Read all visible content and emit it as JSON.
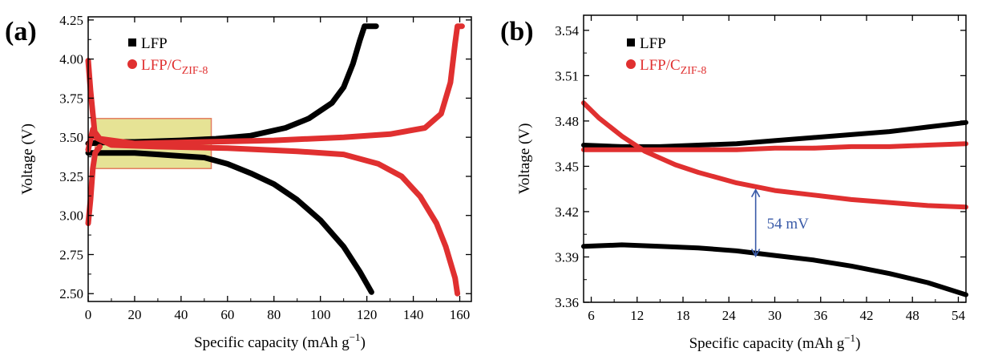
{
  "chart_data": [
    {
      "type": "line",
      "panel_label": "(a)",
      "xlabel": "Specific capacity (mAh g",
      "xlabel_sup": "−1",
      "xlabel_close": ")",
      "ylabel": "Voltage (V)",
      "xlim": [
        0,
        165
      ],
      "ylim": [
        2.45,
        4.27
      ],
      "x_ticks": [
        0,
        20,
        40,
        60,
        80,
        100,
        120,
        140,
        160
      ],
      "y_ticks": [
        "2.50",
        "2.75",
        "3.00",
        "3.25",
        "3.50",
        "3.75",
        "4.00",
        "4.25"
      ],
      "legend": {
        "placement": "top-left",
        "items": [
          {
            "label": "LFP",
            "sub": "",
            "color": "#000000",
            "marker": "square"
          },
          {
            "label": "LFP/C",
            "sub": "ZIF-8",
            "color": "#e03030",
            "marker": "circle"
          }
        ]
      },
      "highlight_box": {
        "x": [
          3,
          53
        ],
        "y": [
          3.3,
          3.62
        ],
        "fill": "#e4e08a",
        "stroke": "#e07050"
      },
      "series": [
        {
          "name": "LFP",
          "color": "#000000",
          "curves": [
            [
              [
                0,
                3.46
              ],
              [
                10,
                3.47
              ],
              [
                20,
                3.47
              ],
              [
                40,
                3.48
              ],
              [
                55,
                3.49
              ],
              [
                70,
                3.51
              ],
              [
                85,
                3.56
              ],
              [
                95,
                3.62
              ],
              [
                105,
                3.72
              ],
              [
                110,
                3.82
              ],
              [
                114,
                3.97
              ],
              [
                117,
                4.12
              ],
              [
                119,
                4.21
              ],
              [
                124,
                4.21
              ]
            ],
            [
              [
                0,
                3.4
              ],
              [
                10,
                3.4
              ],
              [
                20,
                3.4
              ],
              [
                30,
                3.39
              ],
              [
                40,
                3.38
              ],
              [
                50,
                3.37
              ],
              [
                60,
                3.33
              ],
              [
                70,
                3.27
              ],
              [
                80,
                3.2
              ],
              [
                90,
                3.1
              ],
              [
                100,
                2.97
              ],
              [
                110,
                2.8
              ],
              [
                117,
                2.64
              ],
              [
                122,
                2.51
              ]
            ]
          ]
        },
        {
          "name": "LFP/C",
          "color": "#e03030",
          "curves": [
            [
              [
                0,
                3.42
              ],
              [
                2,
                3.55
              ],
              [
                5,
                3.49
              ],
              [
                20,
                3.46
              ],
              [
                50,
                3.47
              ],
              [
                80,
                3.48
              ],
              [
                110,
                3.5
              ],
              [
                130,
                3.52
              ],
              [
                145,
                3.56
              ],
              [
                152,
                3.65
              ],
              [
                156,
                3.85
              ],
              [
                158,
                4.1
              ],
              [
                159,
                4.21
              ],
              [
                161,
                4.21
              ]
            ],
            [
              [
                0,
                3.99
              ],
              [
                1,
                3.8
              ],
              [
                3,
                3.5
              ],
              [
                10,
                3.45
              ],
              [
                30,
                3.44
              ],
              [
                60,
                3.43
              ],
              [
                90,
                3.41
              ],
              [
                110,
                3.39
              ],
              [
                125,
                3.33
              ],
              [
                135,
                3.25
              ],
              [
                143,
                3.12
              ],
              [
                150,
                2.95
              ],
              [
                154,
                2.8
              ],
              [
                158,
                2.6
              ],
              [
                159,
                2.5
              ]
            ],
            [
              [
                0,
                2.95
              ],
              [
                1,
                3.1
              ],
              [
                2,
                3.3
              ],
              [
                3,
                3.4
              ],
              [
                5,
                3.44
              ]
            ]
          ]
        }
      ]
    },
    {
      "type": "line",
      "panel_label": "(b)",
      "xlabel": "Specific capacity (mAh g",
      "xlabel_sup": "−1",
      "xlabel_close": ")",
      "ylabel": "Voltage (V)",
      "xlim": [
        5,
        55
      ],
      "ylim": [
        3.36,
        3.55
      ],
      "x_ticks": [
        6,
        12,
        18,
        24,
        30,
        36,
        42,
        48,
        54
      ],
      "y_ticks": [
        "3.36",
        "3.39",
        "3.42",
        "3.45",
        "3.48",
        "3.51",
        "3.54"
      ],
      "legend": {
        "placement": "top-left",
        "items": [
          {
            "label": "LFP",
            "sub": "",
            "color": "#000000",
            "marker": "square"
          },
          {
            "label": "LFP/C",
            "sub": "ZIF-8",
            "color": "#e03030",
            "marker": "circle"
          }
        ]
      },
      "annotation": {
        "text": "54 mV",
        "x": 27.5,
        "y_top": 3.435,
        "y_bottom": 3.39,
        "color": "#3a5ba8"
      },
      "series": [
        {
          "name": "LFP",
          "color": "#000000",
          "curves": [
            [
              [
                5,
                3.464
              ],
              [
                10,
                3.463
              ],
              [
                15,
                3.463
              ],
              [
                20,
                3.464
              ],
              [
                25,
                3.465
              ],
              [
                30,
                3.467
              ],
              [
                35,
                3.469
              ],
              [
                40,
                3.471
              ],
              [
                45,
                3.473
              ],
              [
                50,
                3.476
              ],
              [
                55,
                3.479
              ]
            ],
            [
              [
                5,
                3.397
              ],
              [
                10,
                3.398
              ],
              [
                15,
                3.397
              ],
              [
                20,
                3.396
              ],
              [
                25,
                3.394
              ],
              [
                30,
                3.391
              ],
              [
                35,
                3.388
              ],
              [
                40,
                3.384
              ],
              [
                45,
                3.379
              ],
              [
                50,
                3.373
              ],
              [
                55,
                3.365
              ]
            ]
          ]
        },
        {
          "name": "LFP/C",
          "color": "#e03030",
          "curves": [
            [
              [
                5,
                3.461
              ],
              [
                10,
                3.461
              ],
              [
                15,
                3.461
              ],
              [
                20,
                3.461
              ],
              [
                25,
                3.461
              ],
              [
                30,
                3.462
              ],
              [
                35,
                3.462
              ],
              [
                40,
                3.463
              ],
              [
                45,
                3.463
              ],
              [
                50,
                3.464
              ],
              [
                55,
                3.465
              ]
            ],
            [
              [
                5,
                3.492
              ],
              [
                7,
                3.482
              ],
              [
                10,
                3.47
              ],
              [
                13,
                3.46
              ],
              [
                17,
                3.451
              ],
              [
                20,
                3.446
              ],
              [
                25,
                3.439
              ],
              [
                30,
                3.434
              ],
              [
                35,
                3.431
              ],
              [
                40,
                3.428
              ],
              [
                45,
                3.426
              ],
              [
                50,
                3.424
              ],
              [
                55,
                3.423
              ]
            ]
          ]
        }
      ]
    }
  ]
}
